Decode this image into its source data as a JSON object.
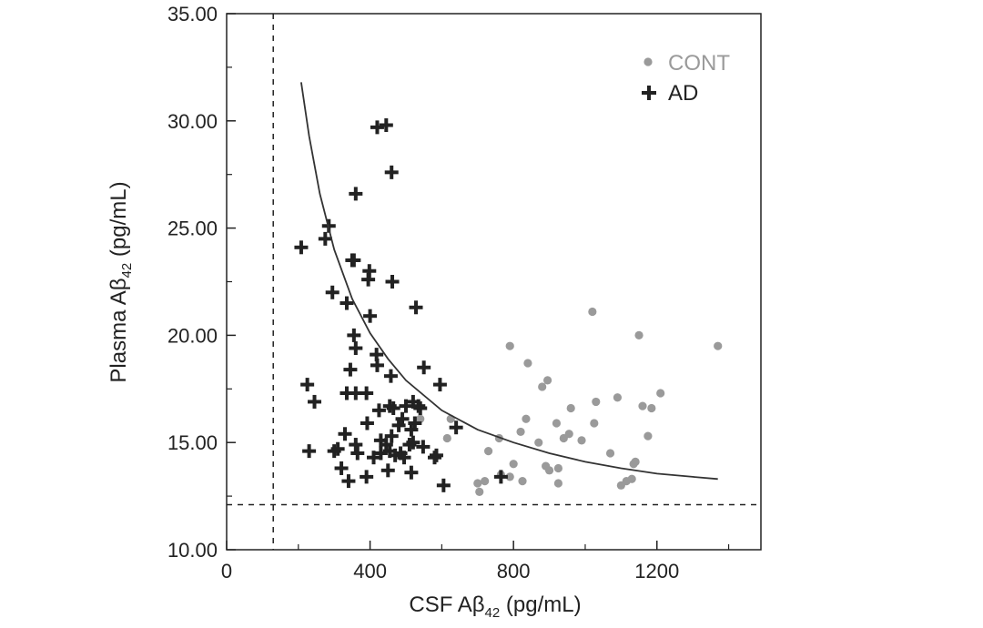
{
  "chart_data": {
    "type": "scatter",
    "title": "",
    "xlabel": {
      "main": "CSF Aβ",
      "sub": "42",
      "unit": " (pg/mL)"
    },
    "ylabel": {
      "main": "Plasma Aβ",
      "sub": "42",
      "unit": " (pg/mL)"
    },
    "xlim": [
      0,
      1490
    ],
    "ylim": [
      10,
      35
    ],
    "xticks": [
      0,
      400,
      800,
      1200
    ],
    "xtick_labels": [
      "0",
      "400",
      "800",
      "1200"
    ],
    "yticks": [
      10,
      15,
      20,
      25,
      30,
      35
    ],
    "ytick_labels": [
      "10.00",
      "15.00",
      "20.00",
      "25.00",
      "30.00",
      "35.00"
    ],
    "grid": false,
    "legend_position": "top-right",
    "colors": {
      "CONT": "#9a9a9a",
      "AD": "#222222",
      "line": "#333333"
    },
    "reference_lines": [
      {
        "orientation": "vertical",
        "value": 130,
        "style": "dashed"
      },
      {
        "orientation": "horizontal",
        "value": 12.1,
        "style": "dashed"
      }
    ],
    "fit_curve": {
      "description": "hyperbolic fit",
      "points": [
        [
          208,
          31.8
        ],
        [
          230,
          29.3
        ],
        [
          260,
          26.6
        ],
        [
          300,
          24.0
        ],
        [
          350,
          21.7
        ],
        [
          400,
          20.1
        ],
        [
          450,
          18.9
        ],
        [
          500,
          17.9
        ],
        [
          600,
          16.5
        ],
        [
          700,
          15.6
        ],
        [
          800,
          15.0
        ],
        [
          900,
          14.5
        ],
        [
          1000,
          14.1
        ],
        [
          1100,
          13.8
        ],
        [
          1200,
          13.55
        ],
        [
          1300,
          13.4
        ],
        [
          1370,
          13.3
        ]
      ]
    },
    "series": [
      {
        "name": "CONT",
        "marker": "dot",
        "points": [
          [
            700,
            13.1
          ],
          [
            705,
            12.7
          ],
          [
            720,
            13.2
          ],
          [
            730,
            14.6
          ],
          [
            760,
            15.2
          ],
          [
            765,
            13.5
          ],
          [
            790,
            13.4
          ],
          [
            790,
            19.5
          ],
          [
            800,
            14.0
          ],
          [
            820,
            15.5
          ],
          [
            825,
            13.2
          ],
          [
            835,
            16.1
          ],
          [
            840,
            18.7
          ],
          [
            870,
            15.0
          ],
          [
            880,
            17.6
          ],
          [
            890,
            13.9
          ],
          [
            895,
            17.9
          ],
          [
            900,
            13.7
          ],
          [
            920,
            15.9
          ],
          [
            925,
            13.1
          ],
          [
            925,
            13.8
          ],
          [
            940,
            15.2
          ],
          [
            955,
            15.4
          ],
          [
            960,
            16.6
          ],
          [
            990,
            15.1
          ],
          [
            1020,
            21.1
          ],
          [
            1025,
            15.9
          ],
          [
            1030,
            16.9
          ],
          [
            1070,
            14.5
          ],
          [
            1090,
            17.1
          ],
          [
            1100,
            13.0
          ],
          [
            1115,
            13.2
          ],
          [
            1130,
            13.3
          ],
          [
            1135,
            14.0
          ],
          [
            1140,
            14.1
          ],
          [
            1150,
            20.0
          ],
          [
            1160,
            16.7
          ],
          [
            1175,
            15.3
          ],
          [
            1185,
            16.6
          ],
          [
            1210,
            17.3
          ],
          [
            1370,
            19.5
          ],
          [
            540,
            16.1
          ],
          [
            625,
            16.1
          ],
          [
            615,
            15.2
          ]
        ]
      },
      {
        "name": "AD",
        "marker": "plus",
        "points": [
          [
            208,
            24.1
          ],
          [
            225,
            17.7
          ],
          [
            230,
            14.6
          ],
          [
            245,
            16.9
          ],
          [
            275,
            24.5
          ],
          [
            285,
            25.1
          ],
          [
            295,
            22.0
          ],
          [
            300,
            14.6
          ],
          [
            310,
            14.7
          ],
          [
            320,
            13.8
          ],
          [
            330,
            15.4
          ],
          [
            335,
            21.5
          ],
          [
            335,
            17.3
          ],
          [
            340,
            13.2
          ],
          [
            345,
            18.4
          ],
          [
            350,
            23.5
          ],
          [
            355,
            23.5
          ],
          [
            355,
            20.0
          ],
          [
            360,
            19.4
          ],
          [
            360,
            26.6
          ],
          [
            360,
            17.3
          ],
          [
            360,
            14.9
          ],
          [
            365,
            14.5
          ],
          [
            390,
            13.4
          ],
          [
            390,
            17.3
          ],
          [
            392,
            15.9
          ],
          [
            395,
            22.6
          ],
          [
            398,
            23.0
          ],
          [
            400,
            20.9
          ],
          [
            410,
            14.3
          ],
          [
            418,
            19.1
          ],
          [
            420,
            18.6
          ],
          [
            420,
            29.7
          ],
          [
            425,
            16.5
          ],
          [
            430,
            15.1
          ],
          [
            430,
            14.5
          ],
          [
            445,
            29.8
          ],
          [
            445,
            14.9
          ],
          [
            450,
            13.7
          ],
          [
            455,
            16.7
          ],
          [
            455,
            14.6
          ],
          [
            458,
            18.1
          ],
          [
            460,
            27.6
          ],
          [
            460,
            15.3
          ],
          [
            462,
            22.5
          ],
          [
            465,
            16.6
          ],
          [
            470,
            14.4
          ],
          [
            480,
            15.8
          ],
          [
            485,
            14.5
          ],
          [
            490,
            16.1
          ],
          [
            495,
            14.3
          ],
          [
            500,
            16.7
          ],
          [
            510,
            14.9
          ],
          [
            515,
            13.6
          ],
          [
            515,
            15.6
          ],
          [
            520,
            16.9
          ],
          [
            520,
            15.0
          ],
          [
            525,
            15.9
          ],
          [
            528,
            21.3
          ],
          [
            535,
            16.7
          ],
          [
            540,
            16.6
          ],
          [
            548,
            14.8
          ],
          [
            550,
            18.5
          ],
          [
            580,
            14.3
          ],
          [
            585,
            14.4
          ],
          [
            595,
            17.7
          ],
          [
            605,
            13.0
          ],
          [
            640,
            15.7
          ],
          [
            765,
            13.4
          ]
        ]
      }
    ]
  }
}
